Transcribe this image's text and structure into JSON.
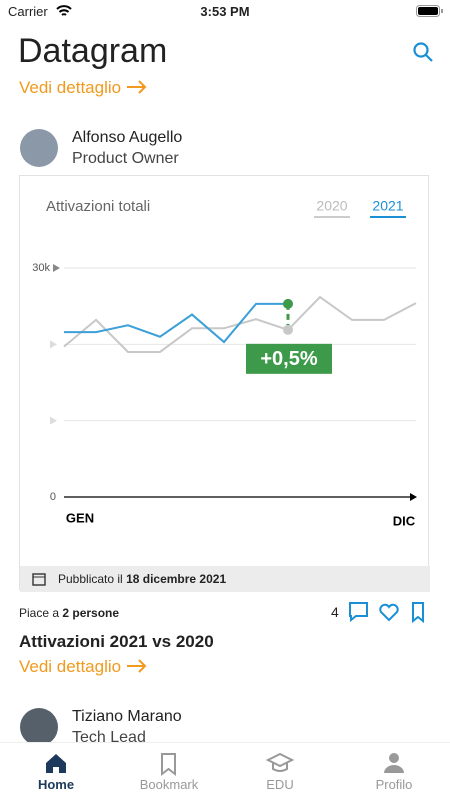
{
  "status_bar": {
    "carrier": "Carrier",
    "time": "3:53 PM"
  },
  "header": {
    "title": "Datagram",
    "link": "Vedi dettaglio"
  },
  "post": {
    "author": "Alfonso Augello",
    "role": "Product Owner",
    "published_prefix": "Pubblicato il",
    "published_date": "18 dicembre 2021",
    "likes_prefix": "Piace a",
    "likes_count": "2 persone",
    "comments": "4",
    "title": "Attivazioni 2021 vs 2020",
    "link": "Vedi dettaglio"
  },
  "next_post": {
    "author": "Tiziano Marano",
    "role": "Tech Lead"
  },
  "tabs": [
    "Home",
    "Bookmark",
    "EDU",
    "Profilo"
  ],
  "chart_data": {
    "type": "line",
    "title": "Attivazioni totali",
    "categories": [
      "GEN",
      null,
      null,
      null,
      null,
      null,
      null,
      null,
      null,
      null,
      null,
      "DIC"
    ],
    "series": [
      {
        "name": "2020",
        "color": "#c8c8c8",
        "values": [
          19.7,
          23.2,
          19.0,
          19.0,
          22.1,
          22.1,
          23.3,
          21.9,
          26.2,
          23.2,
          23.2,
          25.4
        ]
      },
      {
        "name": "2021",
        "color": "#3ba0d8",
        "values": [
          21.6,
          21.6,
          22.5,
          21.0,
          23.9,
          20.3,
          25.3,
          25.3,
          null,
          null,
          null,
          null
        ]
      }
    ],
    "ylim": [
      0,
      30
    ],
    "yticks": [
      0,
      {
        "value": 30,
        "label": "30k"
      }
    ],
    "annotation": "+0,5%",
    "legend": "top-right",
    "grid": true
  }
}
